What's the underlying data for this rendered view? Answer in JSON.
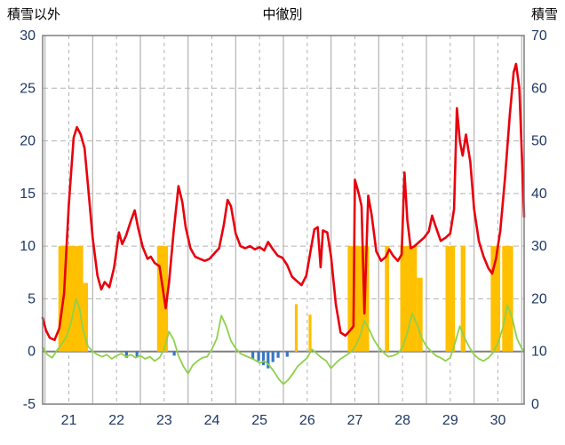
{
  "title": "中徹別",
  "left_axis": {
    "label": "積雪以外",
    "min": -5,
    "max": 30,
    "ticks": [
      30,
      25,
      20,
      15,
      10,
      5,
      0,
      -5
    ]
  },
  "right_axis": {
    "label": "積雪",
    "min": 0,
    "max": 70,
    "ticks": [
      70,
      60,
      50,
      40,
      30,
      20,
      10,
      0
    ]
  },
  "x_axis": {
    "start": 20.45,
    "end": 30.55,
    "day_labels": [
      21,
      22,
      23,
      24,
      25,
      26,
      27,
      28,
      29,
      30
    ]
  },
  "colors": {
    "grid": "#b3b3b3",
    "zero_line": "#7f7f7f",
    "frame": "#7f7f7f",
    "tick_text": "#1f3864",
    "title_text": "#000000",
    "red_series": "#e8000d",
    "green_series": "#8ed14b",
    "orange_series": "#ffc000",
    "blue_series": "#3a76c4"
  },
  "chart_data": {
    "type": "line",
    "title": "中徹別",
    "ylabel_left": "積雪以外",
    "ylabel_right": "積雪",
    "ylim_left": [
      -5,
      30
    ],
    "ylim_right": [
      0,
      70
    ],
    "xlim": [
      20.45,
      30.55
    ],
    "x_tick_labels": [
      21,
      22,
      23,
      24,
      25,
      26,
      27,
      28,
      29,
      30
    ],
    "grid": "on",
    "legend": "none",
    "series": [
      {
        "name": "orange-bars",
        "type": "bar",
        "color": "#ffc000",
        "axis": "left",
        "segments": [
          [
            20.78,
            21.3,
            10
          ],
          [
            21.3,
            21.4,
            6.5
          ],
          [
            22.85,
            23.08,
            10
          ],
          [
            25.74,
            25.8,
            4.5
          ],
          [
            26.03,
            26.09,
            3.5
          ],
          [
            26.85,
            27.3,
            10
          ],
          [
            27.63,
            27.72,
            10
          ],
          [
            27.95,
            28.3,
            10
          ],
          [
            28.3,
            28.42,
            7
          ],
          [
            28.9,
            29.1,
            10
          ],
          [
            29.22,
            29.32,
            10
          ],
          [
            29.85,
            30.05,
            10
          ],
          [
            30.09,
            30.32,
            10
          ]
        ]
      },
      {
        "name": "blue-bars",
        "type": "bar",
        "color": "#3a76c4",
        "axis": "left",
        "segments": [
          [
            22.18,
            22.24,
            -0.6
          ],
          [
            22.4,
            22.46,
            -0.5
          ],
          [
            23.18,
            23.24,
            -0.4
          ],
          [
            24.83,
            24.89,
            -0.7
          ],
          [
            24.95,
            25.01,
            -0.9
          ],
          [
            25.05,
            25.11,
            -1.3
          ],
          [
            25.15,
            25.21,
            -1.6
          ],
          [
            25.25,
            25.31,
            -1.0
          ],
          [
            25.36,
            25.42,
            -0.6
          ],
          [
            25.55,
            25.61,
            -0.5
          ]
        ]
      },
      {
        "name": "green-line",
        "type": "line",
        "color": "#8ed14b",
        "width": 1.8,
        "axis": "left",
        "points": [
          [
            20.45,
            0.4
          ],
          [
            20.55,
            -0.3
          ],
          [
            20.65,
            -0.6
          ],
          [
            20.75,
            0.1
          ],
          [
            20.85,
            0.7
          ],
          [
            20.95,
            1.4
          ],
          [
            21.05,
            2.8
          ],
          [
            21.15,
            5.0
          ],
          [
            21.22,
            4.2
          ],
          [
            21.3,
            2.0
          ],
          [
            21.4,
            0.5
          ],
          [
            21.5,
            0.0
          ],
          [
            21.6,
            -0.3
          ],
          [
            21.7,
            -0.5
          ],
          [
            21.8,
            -0.3
          ],
          [
            21.9,
            -0.7
          ],
          [
            22.0,
            -0.4
          ],
          [
            22.1,
            -0.2
          ],
          [
            22.2,
            -0.5
          ],
          [
            22.3,
            -0.3
          ],
          [
            22.4,
            -0.6
          ],
          [
            22.5,
            -0.4
          ],
          [
            22.6,
            -0.7
          ],
          [
            22.7,
            -0.5
          ],
          [
            22.8,
            -0.9
          ],
          [
            22.9,
            -0.6
          ],
          [
            23.0,
            0.2
          ],
          [
            23.1,
            1.9
          ],
          [
            23.2,
            1.1
          ],
          [
            23.3,
            -0.4
          ],
          [
            23.4,
            -1.4
          ],
          [
            23.5,
            -2.1
          ],
          [
            23.6,
            -1.3
          ],
          [
            23.7,
            -0.9
          ],
          [
            23.8,
            -0.6
          ],
          [
            23.9,
            -0.5
          ],
          [
            24.0,
            0.2
          ],
          [
            24.1,
            1.2
          ],
          [
            24.2,
            3.4
          ],
          [
            24.3,
            2.4
          ],
          [
            24.4,
            1.0
          ],
          [
            24.5,
            0.3
          ],
          [
            24.6,
            -0.2
          ],
          [
            24.7,
            -0.4
          ],
          [
            24.8,
            -0.6
          ],
          [
            24.9,
            -0.8
          ],
          [
            25.0,
            -1.1
          ],
          [
            25.1,
            -0.9
          ],
          [
            25.2,
            -1.3
          ],
          [
            25.3,
            -1.9
          ],
          [
            25.4,
            -2.6
          ],
          [
            25.5,
            -3.1
          ],
          [
            25.6,
            -2.7
          ],
          [
            25.7,
            -2.1
          ],
          [
            25.8,
            -1.4
          ],
          [
            25.9,
            -1.0
          ],
          [
            26.0,
            -0.6
          ],
          [
            26.1,
            0.2
          ],
          [
            26.2,
            -0.2
          ],
          [
            26.3,
            -0.6
          ],
          [
            26.4,
            -0.9
          ],
          [
            26.5,
            -1.6
          ],
          [
            26.6,
            -1.1
          ],
          [
            26.7,
            -0.7
          ],
          [
            26.8,
            -0.4
          ],
          [
            26.9,
            -0.1
          ],
          [
            27.0,
            0.4
          ],
          [
            27.1,
            1.4
          ],
          [
            27.2,
            2.9
          ],
          [
            27.3,
            2.1
          ],
          [
            27.4,
            1.1
          ],
          [
            27.5,
            0.4
          ],
          [
            27.6,
            -0.1
          ],
          [
            27.7,
            -0.5
          ],
          [
            27.8,
            -0.4
          ],
          [
            27.9,
            -0.2
          ],
          [
            28.0,
            0.4
          ],
          [
            28.1,
            1.8
          ],
          [
            28.2,
            3.6
          ],
          [
            28.3,
            2.6
          ],
          [
            28.4,
            1.3
          ],
          [
            28.5,
            0.5
          ],
          [
            28.6,
            0.0
          ],
          [
            28.7,
            -0.4
          ],
          [
            28.8,
            -0.6
          ],
          [
            28.9,
            -0.9
          ],
          [
            29.0,
            -0.6
          ],
          [
            29.1,
            0.8
          ],
          [
            29.2,
            2.4
          ],
          [
            29.3,
            1.3
          ],
          [
            29.4,
            0.4
          ],
          [
            29.5,
            -0.3
          ],
          [
            29.6,
            -0.7
          ],
          [
            29.7,
            -0.9
          ],
          [
            29.8,
            -0.6
          ],
          [
            29.9,
            -0.1
          ],
          [
            30.0,
            0.8
          ],
          [
            30.1,
            2.2
          ],
          [
            30.2,
            4.4
          ],
          [
            30.3,
            3.2
          ],
          [
            30.4,
            1.2
          ],
          [
            30.5,
            0.3
          ],
          [
            30.55,
            0.1
          ]
        ]
      },
      {
        "name": "red-line",
        "type": "line",
        "color": "#e8000d",
        "width": 2.6,
        "axis": "left",
        "points": [
          [
            20.45,
            3.2
          ],
          [
            20.52,
            2.0
          ],
          [
            20.6,
            1.3
          ],
          [
            20.7,
            1.1
          ],
          [
            20.8,
            2.2
          ],
          [
            20.9,
            5.5
          ],
          [
            21.0,
            14.0
          ],
          [
            21.1,
            20.3
          ],
          [
            21.17,
            21.3
          ],
          [
            21.25,
            20.6
          ],
          [
            21.33,
            19.3
          ],
          [
            21.4,
            15.8
          ],
          [
            21.5,
            10.8
          ],
          [
            21.6,
            7.2
          ],
          [
            21.68,
            5.9
          ],
          [
            21.75,
            6.6
          ],
          [
            21.85,
            6.1
          ],
          [
            21.95,
            8.0
          ],
          [
            22.05,
            11.3
          ],
          [
            22.12,
            10.2
          ],
          [
            22.2,
            11.0
          ],
          [
            22.3,
            12.4
          ],
          [
            22.38,
            13.4
          ],
          [
            22.45,
            11.8
          ],
          [
            22.55,
            9.9
          ],
          [
            22.65,
            8.8
          ],
          [
            22.72,
            9.0
          ],
          [
            22.8,
            8.4
          ],
          [
            22.9,
            8.1
          ],
          [
            22.97,
            6.0
          ],
          [
            23.03,
            4.1
          ],
          [
            23.1,
            6.5
          ],
          [
            23.2,
            11.5
          ],
          [
            23.3,
            15.7
          ],
          [
            23.38,
            14.2
          ],
          [
            23.45,
            11.8
          ],
          [
            23.55,
            9.8
          ],
          [
            23.65,
            9.0
          ],
          [
            23.75,
            8.8
          ],
          [
            23.85,
            8.6
          ],
          [
            23.95,
            8.8
          ],
          [
            24.05,
            9.3
          ],
          [
            24.15,
            9.8
          ],
          [
            24.25,
            12.0
          ],
          [
            24.33,
            14.4
          ],
          [
            24.4,
            13.8
          ],
          [
            24.5,
            11.2
          ],
          [
            24.6,
            10.0
          ],
          [
            24.7,
            9.8
          ],
          [
            24.8,
            10.0
          ],
          [
            24.9,
            9.7
          ],
          [
            25.0,
            9.9
          ],
          [
            25.1,
            9.6
          ],
          [
            25.18,
            10.4
          ],
          [
            25.28,
            9.7
          ],
          [
            25.38,
            9.1
          ],
          [
            25.48,
            8.9
          ],
          [
            25.58,
            8.2
          ],
          [
            25.68,
            7.1
          ],
          [
            25.78,
            6.7
          ],
          [
            25.88,
            6.3
          ],
          [
            25.98,
            7.2
          ],
          [
            26.08,
            9.8
          ],
          [
            26.15,
            11.6
          ],
          [
            26.22,
            11.8
          ],
          [
            26.28,
            8.0
          ],
          [
            26.33,
            11.5
          ],
          [
            26.42,
            11.3
          ],
          [
            26.5,
            9.0
          ],
          [
            26.6,
            4.5
          ],
          [
            26.7,
            1.8
          ],
          [
            26.8,
            1.5
          ],
          [
            26.9,
            2.0
          ],
          [
            26.97,
            2.4
          ],
          [
            27.0,
            16.3
          ],
          [
            27.08,
            15.0
          ],
          [
            27.14,
            13.8
          ],
          [
            27.2,
            3.6
          ],
          [
            27.28,
            14.8
          ],
          [
            27.35,
            13.0
          ],
          [
            27.45,
            9.5
          ],
          [
            27.55,
            8.6
          ],
          [
            27.65,
            9.0
          ],
          [
            27.72,
            9.7
          ],
          [
            27.8,
            9.1
          ],
          [
            27.9,
            8.6
          ],
          [
            27.98,
            9.2
          ],
          [
            28.04,
            17.0
          ],
          [
            28.1,
            12.5
          ],
          [
            28.17,
            9.8
          ],
          [
            28.25,
            10.0
          ],
          [
            28.35,
            10.4
          ],
          [
            28.45,
            10.8
          ],
          [
            28.55,
            11.4
          ],
          [
            28.62,
            12.9
          ],
          [
            28.7,
            11.8
          ],
          [
            28.8,
            10.5
          ],
          [
            28.9,
            10.8
          ],
          [
            29.0,
            11.2
          ],
          [
            29.08,
            13.5
          ],
          [
            29.14,
            23.1
          ],
          [
            29.2,
            20.0
          ],
          [
            29.26,
            18.6
          ],
          [
            29.33,
            20.6
          ],
          [
            29.42,
            18.0
          ],
          [
            29.5,
            13.5
          ],
          [
            29.6,
            10.5
          ],
          [
            29.7,
            9.0
          ],
          [
            29.8,
            7.9
          ],
          [
            29.88,
            7.4
          ],
          [
            29.96,
            8.8
          ],
          [
            30.05,
            11.5
          ],
          [
            30.15,
            16.5
          ],
          [
            30.25,
            22.5
          ],
          [
            30.33,
            26.5
          ],
          [
            30.38,
            27.3
          ],
          [
            30.45,
            25.0
          ],
          [
            30.5,
            19.0
          ],
          [
            30.55,
            12.8
          ]
        ]
      }
    ]
  }
}
